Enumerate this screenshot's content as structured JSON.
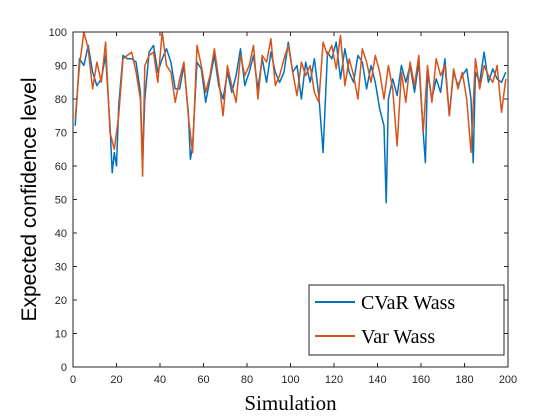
{
  "chart_data": {
    "type": "line",
    "xlabel": "Simulation",
    "ylabel": "Expected confidence level",
    "xlim": [
      0,
      200
    ],
    "ylim": [
      0,
      100
    ],
    "xticks": [
      0,
      20,
      40,
      60,
      80,
      100,
      120,
      140,
      160,
      180,
      200
    ],
    "yticks": [
      0,
      10,
      20,
      30,
      40,
      50,
      60,
      70,
      80,
      90,
      100
    ],
    "grid": false,
    "legend_position": "bottom-right",
    "series": [
      {
        "name": "CVaR Wass",
        "color": "#0072BD",
        "x": [
          1,
          3,
          5,
          7,
          9,
          11,
          13,
          15,
          17,
          18,
          19,
          20,
          21,
          23,
          25,
          27,
          29,
          31,
          32,
          33,
          35,
          37,
          39,
          41,
          43,
          45,
          47,
          49,
          51,
          53,
          54,
          55,
          57,
          59,
          61,
          63,
          65,
          67,
          69,
          71,
          73,
          75,
          77,
          79,
          81,
          83,
          85,
          87,
          89,
          91,
          93,
          95,
          97,
          99,
          101,
          103,
          105,
          107,
          109,
          111,
          113,
          115,
          117,
          119,
          121,
          123,
          125,
          127,
          129,
          131,
          133,
          135,
          137,
          139,
          141,
          143,
          144,
          145,
          147,
          149,
          151,
          153,
          155,
          157,
          159,
          161,
          162,
          163,
          165,
          167,
          169,
          171,
          173,
          175,
          177,
          179,
          181,
          183,
          184,
          185,
          187,
          189,
          191,
          193,
          195,
          197,
          199
        ],
        "y": [
          72,
          92,
          90,
          96,
          88,
          84,
          86,
          93,
          72,
          58,
          64,
          60,
          78,
          93,
          92,
          92,
          91,
          82,
          61,
          80,
          94,
          96,
          88,
          92,
          95,
          91,
          83,
          83,
          90,
          76,
          62,
          66,
          91,
          89,
          79,
          86,
          93,
          84,
          80,
          88,
          82,
          87,
          95,
          84,
          88,
          93,
          83,
          92,
          85,
          94,
          88,
          85,
          88,
          97,
          88,
          90,
          80,
          91,
          85,
          92,
          81,
          64,
          94,
          92,
          97,
          86,
          95,
          88,
          85,
          93,
          91,
          83,
          90,
          85,
          77,
          72,
          49,
          80,
          86,
          81,
          90,
          85,
          90,
          82,
          91,
          70,
          61,
          88,
          80,
          86,
          82,
          92,
          75,
          88,
          84,
          87,
          89,
          80,
          61,
          88,
          85,
          94,
          85,
          89,
          86,
          85,
          88
        ]
      },
      {
        "name": "Var Wass",
        "color": "#D95319",
        "x": [
          1,
          3,
          5,
          7,
          9,
          11,
          13,
          15,
          17,
          19,
          21,
          23,
          25,
          27,
          29,
          31,
          32,
          33,
          35,
          37,
          39,
          41,
          43,
          45,
          47,
          49,
          51,
          53,
          55,
          57,
          59,
          61,
          63,
          65,
          67,
          69,
          71,
          73,
          75,
          77,
          79,
          81,
          83,
          85,
          87,
          89,
          91,
          93,
          95,
          97,
          99,
          101,
          103,
          105,
          107,
          109,
          111,
          113,
          115,
          117,
          119,
          121,
          123,
          125,
          127,
          129,
          131,
          133,
          135,
          137,
          139,
          141,
          143,
          145,
          147,
          149,
          151,
          153,
          155,
          157,
          159,
          161,
          163,
          165,
          167,
          169,
          171,
          173,
          175,
          177,
          179,
          181,
          183,
          185,
          187,
          189,
          191,
          193,
          195,
          197,
          199
        ],
        "y": [
          74,
          90,
          100,
          95,
          83,
          91,
          85,
          97,
          70,
          65,
          75,
          92,
          93,
          94,
          88,
          80,
          57,
          90,
          93,
          94,
          85,
          100,
          90,
          88,
          79,
          86,
          91,
          75,
          64,
          96,
          90,
          82,
          87,
          95,
          86,
          75,
          90,
          84,
          79,
          93,
          87,
          90,
          96,
          80,
          93,
          91,
          98,
          84,
          87,
          92,
          96,
          88,
          81,
          91,
          87,
          90,
          82,
          79,
          97,
          93,
          96,
          89,
          99,
          84,
          92,
          87,
          80,
          95,
          91,
          85,
          93,
          88,
          80,
          90,
          83,
          66,
          88,
          79,
          91,
          84,
          93,
          70,
          90,
          79,
          92,
          87,
          90,
          75,
          89,
          83,
          88,
          80,
          64,
          92,
          83,
          90,
          87,
          85,
          90,
          76,
          86
        ]
      }
    ]
  }
}
